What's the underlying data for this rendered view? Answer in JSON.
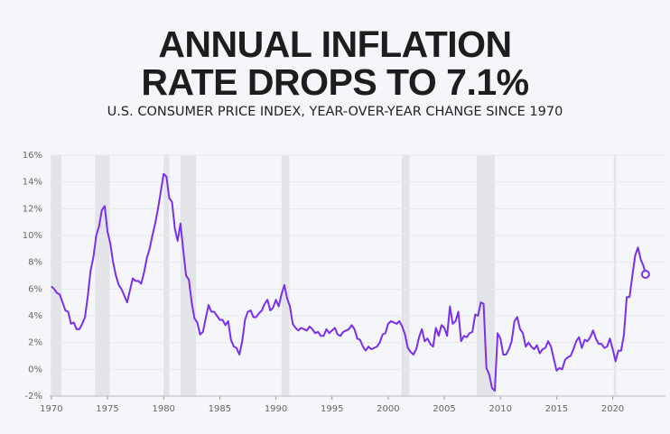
{
  "chart_data": {
    "type": "line",
    "title": "ANNUAL INFLATION RATE DROPS TO 7.1%",
    "subtitle": "U.S. CONSUMER PRICE INDEX, YEAR-OVER-YEAR CHANGE SINCE 1970",
    "x": [
      1970,
      1970.25,
      1970.5,
      1970.75,
      1971,
      1971.25,
      1971.5,
      1971.75,
      1972,
      1972.25,
      1972.5,
      1972.75,
      1973,
      1973.25,
      1973.5,
      1973.75,
      1974,
      1974.25,
      1974.5,
      1974.75,
      1975,
      1975.25,
      1975.5,
      1975.75,
      1976,
      1976.25,
      1976.5,
      1976.75,
      1977,
      1977.25,
      1977.5,
      1977.75,
      1978,
      1978.25,
      1978.5,
      1978.75,
      1979,
      1979.25,
      1979.5,
      1979.75,
      1980,
      1980.25,
      1980.5,
      1980.75,
      1981,
      1981.25,
      1981.5,
      1981.75,
      1982,
      1982.25,
      1982.5,
      1982.75,
      1983,
      1983.25,
      1983.5,
      1983.75,
      1984,
      1984.25,
      1984.5,
      1984.75,
      1985,
      1985.25,
      1985.5,
      1985.75,
      1986,
      1986.25,
      1986.5,
      1986.75,
      1987,
      1987.25,
      1987.5,
      1987.75,
      1988,
      1988.25,
      1988.5,
      1988.75,
      1989,
      1989.25,
      1989.5,
      1989.75,
      1990,
      1990.25,
      1990.5,
      1990.75,
      1991,
      1991.25,
      1991.5,
      1991.75,
      1992,
      1992.25,
      1992.5,
      1992.75,
      1993,
      1993.25,
      1993.5,
      1993.75,
      1994,
      1994.25,
      1994.5,
      1994.75,
      1995,
      1995.25,
      1995.5,
      1995.75,
      1996,
      1996.25,
      1996.5,
      1996.75,
      1997,
      1997.25,
      1997.5,
      1997.75,
      1998,
      1998.25,
      1998.5,
      1998.75,
      1999,
      1999.25,
      1999.5,
      1999.75,
      2000,
      2000.25,
      2000.5,
      2000.75,
      2001,
      2001.25,
      2001.5,
      2001.75,
      2002,
      2002.25,
      2002.5,
      2002.75,
      2003,
      2003.25,
      2003.5,
      2003.75,
      2004,
      2004.25,
      2004.5,
      2004.75,
      2005,
      2005.25,
      2005.5,
      2005.75,
      2006,
      2006.25,
      2006.5,
      2006.75,
      2007,
      2007.25,
      2007.5,
      2007.75,
      2008,
      2008.25,
      2008.5,
      2008.75,
      2009,
      2009.25,
      2009.5,
      2009.75,
      2010,
      2010.25,
      2010.5,
      2010.75,
      2011,
      2011.25,
      2011.5,
      2011.75,
      2012,
      2012.25,
      2012.5,
      2012.75,
      2013,
      2013.25,
      2013.5,
      2013.75,
      2014,
      2014.25,
      2014.5,
      2014.75,
      2015,
      2015.25,
      2015.5,
      2015.75,
      2016,
      2016.25,
      2016.5,
      2016.75,
      2017,
      2017.25,
      2017.5,
      2017.75,
      2018,
      2018.25,
      2018.5,
      2018.75,
      2019,
      2019.25,
      2019.5,
      2019.75,
      2020,
      2020.25,
      2020.5,
      2020.75,
      2021,
      2021.25,
      2021.5,
      2021.75,
      2022,
      2022.25,
      2022.5,
      2022.75,
      2022.92
    ],
    "series": [
      {
        "color": "#7a2ff0",
        "values": [
          6.2,
          6.0,
          5.7,
          5.6,
          5.0,
          4.4,
          4.3,
          3.4,
          3.5,
          3.0,
          3.0,
          3.4,
          3.9,
          5.5,
          7.4,
          8.4,
          10.0,
          10.7,
          11.9,
          12.2,
          10.3,
          9.4,
          8.0,
          7.0,
          6.3,
          6.0,
          5.5,
          5.0,
          5.9,
          6.8,
          6.6,
          6.6,
          6.4,
          7.2,
          8.3,
          9.0,
          10.0,
          10.9,
          12.0,
          13.3,
          14.6,
          14.4,
          12.8,
          12.5,
          10.5,
          9.6,
          10.9,
          8.9,
          7.0,
          6.7,
          5.0,
          3.8,
          3.5,
          2.6,
          2.8,
          3.8,
          4.8,
          4.3,
          4.3,
          4.0,
          3.7,
          3.7,
          3.3,
          3.6,
          2.2,
          1.7,
          1.6,
          1.1,
          2.1,
          3.7,
          4.3,
          4.4,
          3.9,
          3.9,
          4.2,
          4.4,
          4.9,
          5.2,
          4.4,
          4.6,
          5.2,
          4.7,
          5.6,
          6.3,
          5.3,
          4.7,
          3.4,
          3.1,
          2.9,
          3.1,
          3.0,
          2.9,
          3.2,
          3.0,
          2.7,
          2.8,
          2.5,
          2.5,
          3.0,
          2.7,
          2.9,
          3.1,
          2.6,
          2.5,
          2.8,
          2.9,
          3.0,
          3.3,
          3.0,
          2.3,
          2.2,
          1.7,
          1.4,
          1.7,
          1.5,
          1.6,
          1.7,
          2.0,
          2.6,
          2.7,
          3.4,
          3.6,
          3.5,
          3.4,
          3.6,
          3.2,
          2.6,
          1.6,
          1.3,
          1.1,
          1.5,
          2.4,
          3.0,
          2.1,
          2.3,
          1.9,
          1.7,
          3.1,
          2.5,
          3.3,
          3.1,
          2.5,
          4.7,
          3.4,
          3.6,
          4.3,
          2.1,
          2.5,
          2.4,
          2.7,
          2.8,
          4.1,
          4.0,
          5.0,
          4.9,
          0.1,
          -0.4,
          -1.4,
          -1.6,
          2.7,
          2.3,
          1.1,
          1.1,
          1.5,
          2.1,
          3.6,
          3.9,
          3.0,
          2.7,
          1.7,
          2.0,
          1.7,
          1.5,
          1.8,
          1.2,
          1.5,
          1.6,
          2.1,
          1.7,
          0.8,
          -0.1,
          0.1,
          0.0,
          0.7,
          0.9,
          1.0,
          1.5,
          2.1,
          2.4,
          1.6,
          2.2,
          2.1,
          2.4,
          2.9,
          2.3,
          1.9,
          1.9,
          1.6,
          1.7,
          2.3,
          1.5,
          0.6,
          1.4,
          1.4,
          2.6,
          5.4,
          5.4,
          7.0,
          8.5,
          9.1,
          8.2,
          7.7,
          7.1
        ]
      }
    ],
    "recessions": [
      [
        1969.95,
        1970.9
      ],
      [
        1973.9,
        1975.2
      ],
      [
        1980.0,
        1980.5
      ],
      [
        1981.5,
        1982.9
      ],
      [
        1990.5,
        1991.2
      ],
      [
        2001.2,
        2001.9
      ],
      [
        2007.9,
        2009.5
      ],
      [
        2020.1,
        2020.3
      ]
    ],
    "recession_color": "#e3e4e7",
    "xlim": [
      1969.85,
      2024.7
    ],
    "xticks": [
      1970,
      1975,
      1980,
      1985,
      1990,
      1995,
      2000,
      2005,
      2010,
      2015,
      2020
    ],
    "ylim": [
      -2,
      16
    ],
    "yticks": [
      {
        "value": -2,
        "label": "-2%"
      },
      {
        "value": 0,
        "label": "0%"
      },
      {
        "value": 2,
        "label": "2%"
      },
      {
        "value": 4,
        "label": "4%"
      },
      {
        "value": 6,
        "label": "6%"
      },
      {
        "value": 8,
        "label": "8%"
      },
      {
        "value": 10,
        "label": "10%"
      },
      {
        "value": 12,
        "label": "12%"
      },
      {
        "value": 14,
        "label": "14%"
      },
      {
        "value": 16,
        "label": "16%"
      }
    ],
    "grid": true
  }
}
